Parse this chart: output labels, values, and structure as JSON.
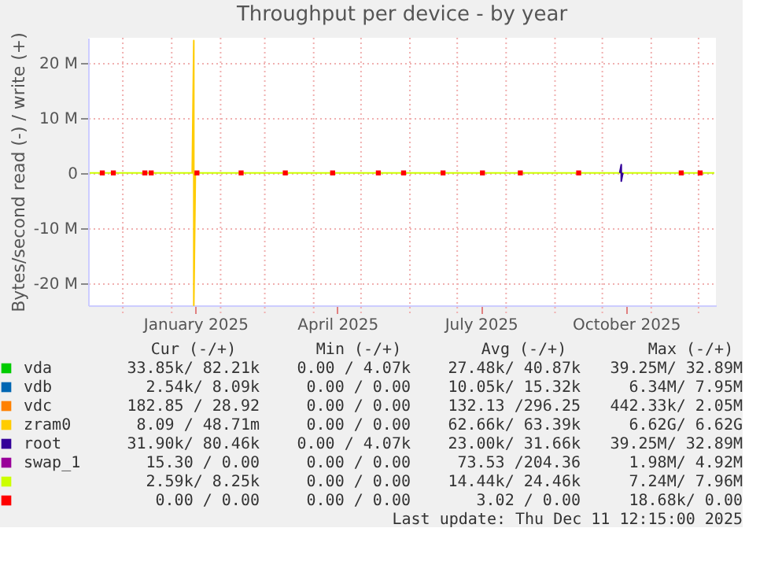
{
  "chart_data": {
    "type": "line",
    "title": "Throughput per device - by year",
    "ylabel": "Bytes/second read (-) / write (+)",
    "x": [
      "2024-11-10",
      "2025-12-11"
    ],
    "xlim": [
      "2024-11-09",
      "2025-12-12"
    ],
    "xticks": [
      {
        "value": "2024-12-01",
        "label": null
      },
      {
        "value": "2025-01-01",
        "label": null
      },
      {
        "value": "2025-01-16",
        "label": "January 2025"
      },
      {
        "value": "2025-02-01",
        "label": null
      },
      {
        "value": "2025-03-01",
        "label": null
      },
      {
        "value": "2025-04-01",
        "label": null
      },
      {
        "value": "2025-04-16",
        "label": "April 2025"
      },
      {
        "value": "2025-05-01",
        "label": null
      },
      {
        "value": "2025-06-01",
        "label": null
      },
      {
        "value": "2025-07-01",
        "label": null
      },
      {
        "value": "2025-07-16",
        "label": "July 2025"
      },
      {
        "value": "2025-08-01",
        "label": null
      },
      {
        "value": "2025-09-01",
        "label": null
      },
      {
        "value": "2025-10-01",
        "label": null
      },
      {
        "value": "2025-10-16",
        "label": "October 2025"
      },
      {
        "value": "2025-11-01",
        "label": null
      },
      {
        "value": "2025-12-01",
        "label": null
      }
    ],
    "ylim": [
      -24000000,
      24500000
    ],
    "yticks": [
      {
        "value": -20000000,
        "label": "-20 M"
      },
      {
        "value": -10000000,
        "label": "-10 M"
      },
      {
        "value": 0,
        "label": "0"
      },
      {
        "value": 10000000,
        "label": "10 M"
      },
      {
        "value": 20000000,
        "label": "20 M"
      }
    ],
    "grid": true,
    "legend": "bottom",
    "marker": "none",
    "line_style": "solid",
    "series": [
      {
        "name": "vda",
        "color": "#00cc00",
        "values": [
          null,
          null
        ]
      },
      {
        "name": "vdb",
        "color": "#0066b3",
        "values": [
          null,
          null
        ]
      },
      {
        "name": "vdc",
        "color": "#ff8000",
        "values": [
          null,
          null
        ]
      },
      {
        "name": "zram0",
        "color": "#ffcc00",
        "x": [
          "2025-01-14",
          "2025-01-15",
          "2025-01-15",
          "2025-01-16"
        ],
        "values": [
          0,
          24000000,
          -24000000,
          0
        ]
      },
      {
        "name": "root",
        "color": "#330099",
        "x": [
          "2025-10-12",
          "2025-10-13",
          "2025-10-13",
          "2025-10-14"
        ],
        "values": [
          0,
          1500000,
          -1500000,
          0
        ]
      },
      {
        "name": "swap_1",
        "color": "#990099",
        "values": [
          null,
          null
        ]
      },
      {
        "color": "#ccff00",
        "values": [
          0,
          0
        ]
      },
      {
        "color": "#ff0000",
        "type": "scatter",
        "marker": "square",
        "x": [
          "2024-11-18",
          "2024-11-25",
          "2024-12-15",
          "2024-12-19",
          "2025-01-17",
          "2025-02-14",
          "2025-03-14",
          "2025-04-13",
          "2025-05-12",
          "2025-05-28",
          "2025-06-22",
          "2025-07-17",
          "2025-08-10",
          "2025-09-16",
          "2025-11-20",
          "2025-12-02"
        ],
        "values": [
          0,
          0,
          0,
          0,
          0,
          0,
          0,
          0,
          0,
          0,
          0,
          0,
          0,
          0,
          0,
          0
        ]
      }
    ],
    "annotations": [
      "Cur (-/+)",
      "Min (-/+)",
      "Avg (-/+)",
      "Max (-/+)",
      "33.85k/ 82.21k",
      "0.00 /  4.07k",
      "27.48k/ 40.87k",
      "39.25M/ 32.89M",
      "2.54k/  8.09k",
      "0.00 /  0.00",
      "10.05k/ 15.32k",
      "6.34M/  7.95M",
      "182.85 / 28.92",
      "0.00 /  0.00",
      "132.13 /296.25",
      "442.33k/  2.05M",
      "8.09 / 48.71m",
      "0.00 /  0.00",
      "62.66k/ 63.39k",
      "6.62G/  6.62G",
      "31.90k/ 80.46k",
      "0.00 /  4.07k",
      "23.00k/ 31.66k",
      "39.25M/ 32.89M",
      "15.30 /  0.00",
      "0.00 /  0.00",
      "73.53 /204.36",
      "1.98M/  4.92M",
      "2.59k/  8.25k",
      "0.00 /  0.00",
      "14.44k/ 24.46k",
      "7.24M/  7.96M",
      "0.00 /  0.00",
      "0.00 /  0.00",
      "3.02 /  0.00",
      "18.68k/  0.00",
      "Last update: Thu Dec 11 12:15:00 2025"
    ]
  }
}
